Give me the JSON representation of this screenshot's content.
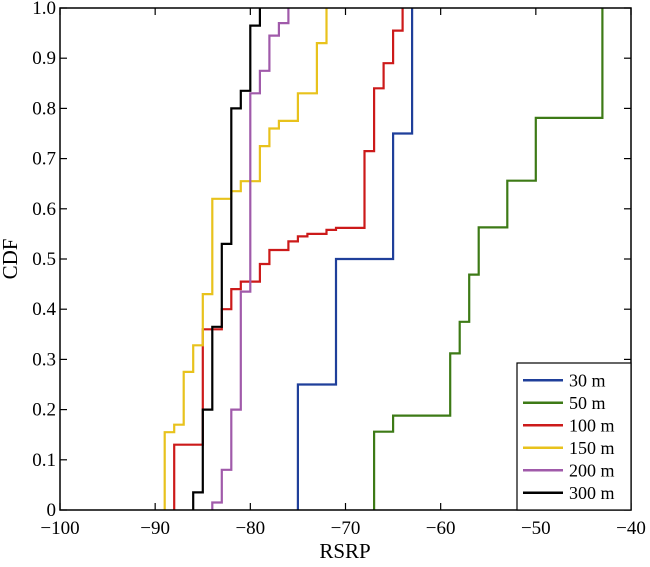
{
  "chart_data": {
    "type": "line",
    "step": true,
    "title": "",
    "xlabel": "RSRP",
    "ylabel": "CDF",
    "xlim": [
      -100,
      -40
    ],
    "ylim": [
      0,
      1
    ],
    "xticks": [
      -100,
      -90,
      -80,
      -70,
      -60,
      -50,
      -40
    ],
    "xtick_labels": [
      "−100",
      "−90",
      "−80",
      "−70",
      "−60",
      "−50",
      "−40"
    ],
    "yticks": [
      0,
      0.1,
      0.2,
      0.3,
      0.4,
      0.5,
      0.6,
      0.7,
      0.8,
      0.9,
      1.0
    ],
    "ytick_labels": [
      "0",
      "0.1",
      "0.2",
      "0.3",
      "0.4",
      "0.5",
      "0.6",
      "0.7",
      "0.8",
      "0.9",
      "1.0"
    ],
    "grid": false,
    "legend_position": "bottom-right",
    "series": [
      {
        "name": "30 m",
        "color": "#1f3f9a",
        "points": [
          [
            -75,
            0
          ],
          [
            -75,
            0.25
          ],
          [
            -71,
            0.25
          ],
          [
            -71,
            0.5
          ],
          [
            -65,
            0.5
          ],
          [
            -65,
            0.75
          ],
          [
            -63,
            0.75
          ],
          [
            -63,
            1.0
          ]
        ]
      },
      {
        "name": "50 m",
        "color": "#3d7a16",
        "points": [
          [
            -67,
            0
          ],
          [
            -67,
            0.156
          ],
          [
            -65,
            0.156
          ],
          [
            -65,
            0.188
          ],
          [
            -59,
            0.188
          ],
          [
            -59,
            0.312
          ],
          [
            -58,
            0.312
          ],
          [
            -58,
            0.375
          ],
          [
            -57,
            0.375
          ],
          [
            -57,
            0.469
          ],
          [
            -56,
            0.469
          ],
          [
            -56,
            0.563
          ],
          [
            -53,
            0.563
          ],
          [
            -53,
            0.656
          ],
          [
            -50,
            0.656
          ],
          [
            -50,
            0.781
          ],
          [
            -43,
            0.781
          ],
          [
            -43,
            1.0
          ]
        ]
      },
      {
        "name": "100 m",
        "color": "#cc1a1a",
        "points": [
          [
            -88,
            0
          ],
          [
            -88,
            0.13
          ],
          [
            -85,
            0.13
          ],
          [
            -85,
            0.36
          ],
          [
            -83,
            0.36
          ],
          [
            -83,
            0.4
          ],
          [
            -82,
            0.4
          ],
          [
            -82,
            0.44
          ],
          [
            -81,
            0.44
          ],
          [
            -81,
            0.455
          ],
          [
            -79,
            0.455
          ],
          [
            -79,
            0.49
          ],
          [
            -78,
            0.49
          ],
          [
            -78,
            0.518
          ],
          [
            -76,
            0.518
          ],
          [
            -76,
            0.535
          ],
          [
            -75,
            0.535
          ],
          [
            -75,
            0.545
          ],
          [
            -74,
            0.545
          ],
          [
            -74,
            0.55
          ],
          [
            -72,
            0.55
          ],
          [
            -72,
            0.558
          ],
          [
            -71,
            0.558
          ],
          [
            -71,
            0.562
          ],
          [
            -68,
            0.562
          ],
          [
            -68,
            0.715
          ],
          [
            -67,
            0.715
          ],
          [
            -67,
            0.84
          ],
          [
            -66,
            0.84
          ],
          [
            -66,
            0.89
          ],
          [
            -65,
            0.89
          ],
          [
            -65,
            0.955
          ],
          [
            -64,
            0.955
          ],
          [
            -64,
            1.0
          ]
        ]
      },
      {
        "name": "150 m",
        "color": "#e8c21c",
        "points": [
          [
            -89,
            0
          ],
          [
            -89,
            0.155
          ],
          [
            -88,
            0.155
          ],
          [
            -88,
            0.17
          ],
          [
            -87,
            0.17
          ],
          [
            -87,
            0.275
          ],
          [
            -86,
            0.275
          ],
          [
            -86,
            0.328
          ],
          [
            -85,
            0.328
          ],
          [
            -85,
            0.43
          ],
          [
            -84,
            0.43
          ],
          [
            -84,
            0.62
          ],
          [
            -82,
            0.62
          ],
          [
            -82,
            0.635
          ],
          [
            -81,
            0.635
          ],
          [
            -81,
            0.655
          ],
          [
            -79,
            0.655
          ],
          [
            -79,
            0.725
          ],
          [
            -78,
            0.725
          ],
          [
            -78,
            0.76
          ],
          [
            -77,
            0.76
          ],
          [
            -77,
            0.775
          ],
          [
            -75,
            0.775
          ],
          [
            -75,
            0.83
          ],
          [
            -73,
            0.83
          ],
          [
            -73,
            0.93
          ],
          [
            -72,
            0.93
          ],
          [
            -72,
            1.0
          ]
        ]
      },
      {
        "name": "200 m",
        "color": "#a05aaa",
        "points": [
          [
            -84,
            0
          ],
          [
            -84,
            0.015
          ],
          [
            -83,
            0.015
          ],
          [
            -83,
            0.08
          ],
          [
            -82,
            0.08
          ],
          [
            -82,
            0.2
          ],
          [
            -81,
            0.2
          ],
          [
            -81,
            0.435
          ],
          [
            -80,
            0.435
          ],
          [
            -80,
            0.5
          ],
          [
            -80,
            0.83
          ],
          [
            -79,
            0.83
          ],
          [
            -79,
            0.875
          ],
          [
            -78,
            0.875
          ],
          [
            -78,
            0.945
          ],
          [
            -77,
            0.945
          ],
          [
            -77,
            0.97
          ],
          [
            -76,
            0.97
          ],
          [
            -76,
            1.0
          ]
        ]
      },
      {
        "name": "300 m",
        "color": "#000000",
        "points": [
          [
            -86,
            0
          ],
          [
            -86,
            0.035
          ],
          [
            -85,
            0.035
          ],
          [
            -85,
            0.2
          ],
          [
            -84,
            0.2
          ],
          [
            -84,
            0.365
          ],
          [
            -83,
            0.365
          ],
          [
            -83,
            0.53
          ],
          [
            -82,
            0.53
          ],
          [
            -82,
            0.8
          ],
          [
            -81,
            0.8
          ],
          [
            -81,
            0.835
          ],
          [
            -80,
            0.835
          ],
          [
            -80,
            0.965
          ],
          [
            -79,
            0.965
          ],
          [
            -79,
            1.0
          ]
        ]
      }
    ]
  }
}
